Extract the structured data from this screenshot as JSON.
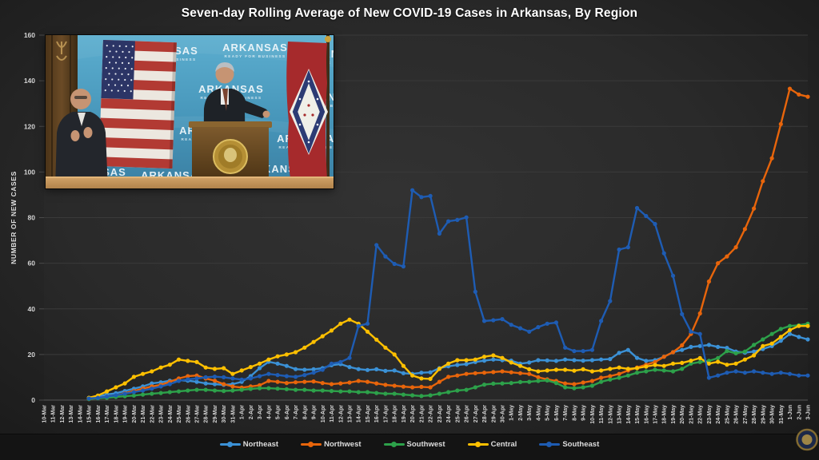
{
  "title": "Seven-day Rolling Average of New COVID-19 Cases in Arkansas, By Region",
  "y_axis": {
    "title": "NUMBER OF NEW CASES",
    "ticks": [
      0,
      20,
      40,
      60,
      80,
      100,
      120,
      140,
      160
    ]
  },
  "video_overlay": {
    "backdrop_text": "ARKANSAS",
    "backdrop_tagline": "READY FOR BUSINESS"
  },
  "colors": {
    "northeast": "#3b91d6",
    "northwest": "#e8650b",
    "southwest": "#2da14a",
    "central": "#ffc000",
    "southeast": "#1e5cb3",
    "background": "#282828",
    "gridline": "#3a3a3a",
    "tick_text": "#d4d4d4"
  },
  "chart_data": {
    "type": "line",
    "title": "Seven-day Rolling Average of New COVID-19 Cases in Arkansas, By Region",
    "xlabel": "",
    "ylabel": "NUMBER OF NEW CASES",
    "ylim": [
      0,
      160
    ],
    "y_tick_step": 20,
    "grid": true,
    "legend_position": "bottom",
    "categories": [
      "10-Mar",
      "11-Mar",
      "12-Mar",
      "13-Mar",
      "14-Mar",
      "15-Mar",
      "16-Mar",
      "17-Mar",
      "18-Mar",
      "19-Mar",
      "20-Mar",
      "21-Mar",
      "22-Mar",
      "23-Mar",
      "24-Mar",
      "25-Mar",
      "26-Mar",
      "27-Mar",
      "28-Mar",
      "29-Mar",
      "30-Mar",
      "31-Mar",
      "1-Apr",
      "2-Apr",
      "3-Apr",
      "4-Apr",
      "5-Apr",
      "6-Apr",
      "7-Apr",
      "8-Apr",
      "9-Apr",
      "10-Apr",
      "11-Apr",
      "12-Apr",
      "13-Apr",
      "14-Apr",
      "15-Apr",
      "16-Apr",
      "17-Apr",
      "18-Apr",
      "19-Apr",
      "20-Apr",
      "21-Apr",
      "22-Apr",
      "23-Apr",
      "24-Apr",
      "25-Apr",
      "26-Apr",
      "27-Apr",
      "28-Apr",
      "29-Apr",
      "30-Apr",
      "1-May",
      "2-May",
      "3-May",
      "4-May",
      "5-May",
      "6-May",
      "7-May",
      "8-May",
      "9-May",
      "10-May",
      "11-May",
      "12-May",
      "13-May",
      "14-May",
      "15-May",
      "16-May",
      "17-May",
      "18-May",
      "19-May",
      "20-May",
      "21-May",
      "22-May",
      "23-May",
      "24-May",
      "25-May",
      "26-May",
      "27-May",
      "28-May",
      "29-May",
      "30-May",
      "31-May",
      "1-Jun",
      "2-Jun",
      "3-Jun"
    ],
    "series": [
      {
        "name": "Northeast",
        "color": "#3b91d6",
        "values": [
          null,
          null,
          null,
          null,
          null,
          1,
          1.5,
          2.5,
          3,
          4,
          5,
          6,
          7.3,
          7.8,
          8.5,
          8.7,
          8.5,
          8,
          7.3,
          7,
          6.7,
          7,
          8,
          10.5,
          14,
          16.8,
          16,
          15,
          13.6,
          13.3,
          13.5,
          14,
          15.3,
          15.8,
          14.5,
          13.6,
          13.2,
          13.5,
          12.8,
          13,
          11.8,
          11.5,
          12,
          12.2,
          14,
          14.8,
          15.4,
          15.8,
          16.7,
          17.3,
          17.8,
          17.5,
          17.3,
          16,
          16.5,
          17.5,
          17.4,
          17.2,
          17.8,
          17.5,
          17.3,
          17.5,
          17.8,
          18,
          20.7,
          22,
          18.5,
          17.2,
          17.5,
          19,
          21,
          22,
          23.3,
          23.7,
          24.2,
          23.3,
          22.9,
          21.3,
          20.8,
          21.3,
          22.4,
          23.7,
          26,
          29,
          27.7,
          26.6
        ]
      },
      {
        "name": "Northwest",
        "color": "#e8650b",
        "values": [
          null,
          null,
          null,
          null,
          null,
          0.5,
          1,
          1.5,
          2,
          3,
          4,
          5,
          6,
          6.7,
          8,
          9.5,
          10.5,
          10.8,
          9.5,
          8.5,
          7,
          6,
          5.5,
          6,
          6.5,
          8.4,
          8,
          7.5,
          7.8,
          8,
          8.2,
          7.5,
          7,
          7.3,
          7.7,
          8.4,
          8,
          7.3,
          6.7,
          6.3,
          5.9,
          5.6,
          5.8,
          5.6,
          8,
          10.2,
          10.8,
          11.5,
          11.8,
          12,
          12.3,
          12.6,
          12.2,
          11.8,
          11.5,
          10,
          9.1,
          8.4,
          7.3,
          7,
          7.7,
          8.4,
          9.8,
          10.5,
          11.5,
          13,
          14.3,
          15.5,
          16.7,
          19,
          21,
          24,
          29,
          38,
          52,
          60,
          63,
          67,
          75,
          84,
          96,
          106,
          121,
          136.5,
          134,
          133
        ]
      },
      {
        "name": "Southwest",
        "color": "#2da14a",
        "values": [
          null,
          null,
          null,
          null,
          null,
          0.5,
          0.8,
          1,
          1.4,
          1.7,
          2,
          2.4,
          2.8,
          3.1,
          3.5,
          3.8,
          4.2,
          4.5,
          4.5,
          4.2,
          4,
          4.2,
          4.5,
          4.9,
          5.2,
          5.2,
          5,
          4.8,
          4.5,
          4.5,
          4.2,
          4.2,
          4,
          3.8,
          3.8,
          3.5,
          3.5,
          3.1,
          2.8,
          2.8,
          2.4,
          2.1,
          1.8,
          2.1,
          2.8,
          3.5,
          4.2,
          4.5,
          5.6,
          6.8,
          7.2,
          7.3,
          7.5,
          7.9,
          8,
          8.4,
          8.6,
          7.5,
          5.6,
          5.2,
          5.6,
          6.3,
          8,
          9,
          9.8,
          10.8,
          12,
          12.6,
          13.3,
          13,
          12.6,
          13.7,
          16,
          16.7,
          17.2,
          18.4,
          21.5,
          20.5,
          21.3,
          24.2,
          26.6,
          29,
          31.2,
          32.5,
          32.8,
          33.5
        ]
      },
      {
        "name": "Central",
        "color": "#ffc000",
        "values": [
          null,
          null,
          null,
          null,
          null,
          1,
          2,
          3.8,
          5.6,
          7.3,
          10.2,
          11.5,
          12.6,
          14.3,
          15.5,
          17.8,
          17.2,
          16.7,
          14.3,
          13.7,
          14,
          11.5,
          13,
          14.5,
          16,
          17.8,
          19.2,
          20,
          21,
          23,
          25.5,
          28,
          30.5,
          33.5,
          35.3,
          33.5,
          30,
          26.5,
          23,
          20,
          15,
          10.8,
          9.5,
          9.3,
          13.7,
          16,
          17.5,
          17.5,
          17.8,
          19,
          19.6,
          18.5,
          16.5,
          15,
          13.5,
          12.6,
          13,
          13.3,
          13.3,
          12.9,
          13.5,
          12.6,
          13,
          13.7,
          14.3,
          13.7,
          14,
          14.7,
          15.4,
          15,
          16,
          16.3,
          17.3,
          18.4,
          16,
          16.8,
          15.5,
          16,
          17.8,
          19.6,
          23.7,
          24.8,
          27.7,
          30.7,
          32.5,
          32.5
        ]
      },
      {
        "name": "Southeast",
        "color": "#1e5cb3",
        "values": [
          null,
          null,
          null,
          null,
          null,
          0.7,
          1,
          1.5,
          2.1,
          2.8,
          3.5,
          4.2,
          5,
          6,
          7,
          8.4,
          9.1,
          9.5,
          10,
          10.3,
          10,
          9.5,
          9,
          9.5,
          10.5,
          11.5,
          11,
          10.5,
          10.2,
          11,
          12,
          13.3,
          16,
          16.7,
          18.5,
          32.5,
          33.5,
          68,
          63,
          59.7,
          58.6,
          92,
          89,
          89.5,
          73,
          78.4,
          79,
          80.1,
          47.5,
          34.7,
          35,
          35.5,
          33,
          31.5,
          30,
          32,
          33.5,
          34,
          23,
          21.5,
          21.5,
          22,
          34.7,
          43.4,
          66,
          67,
          84.2,
          80.7,
          77.2,
          64.4,
          54.5,
          37.7,
          30,
          29,
          9.8,
          10.8,
          12,
          12.6,
          12,
          12.6,
          12,
          11.5,
          12,
          11.5,
          10.8,
          10.8
        ]
      }
    ]
  }
}
